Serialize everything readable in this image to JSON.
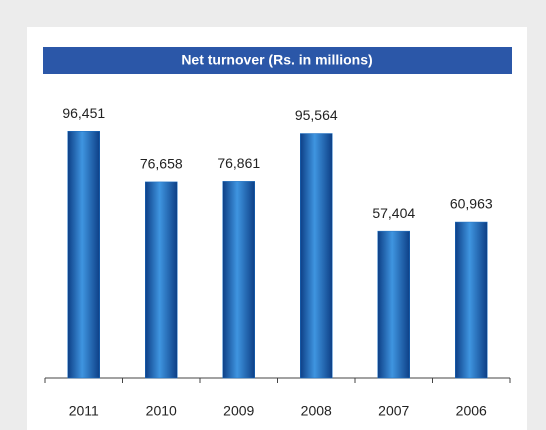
{
  "chart_data": {
    "type": "bar",
    "title": "Net turnover (Rs. in millions)",
    "categories": [
      "2011",
      "2010",
      "2009",
      "2008",
      "2007",
      "2006"
    ],
    "values": [
      96451,
      76658,
      76861,
      95564,
      57404,
      60963
    ],
    "value_labels": [
      "96,451",
      "76,658",
      "76,861",
      "95,564",
      "57,404",
      "60,963"
    ],
    "color": "#1b6fc2",
    "ylim": [
      0,
      120000
    ]
  }
}
